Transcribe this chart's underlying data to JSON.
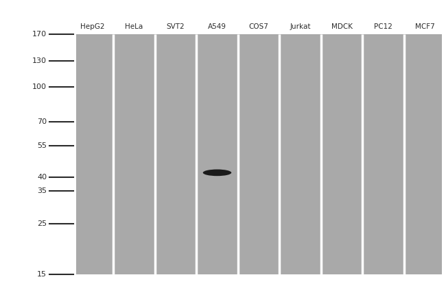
{
  "lanes": [
    "HepG2",
    "HeLa",
    "SVT2",
    "A549",
    "COS7",
    "Jurkat",
    "MDCK",
    "PC12",
    "MCF7"
  ],
  "mw_markers": [
    170,
    130,
    100,
    70,
    55,
    40,
    35,
    25,
    15
  ],
  "band_lane_idx": 3,
  "band_mw": 42,
  "lane_color": "#a9a9a9",
  "separator_color": "#ffffff",
  "band_color": "#1a1a1a",
  "marker_line_color": "#2a2a2a",
  "label_color": "#2a2a2a",
  "fig_bg_color": "#ffffff",
  "num_lanes": 9,
  "label_fontsize": 7.5,
  "mw_fontsize": 8.0
}
